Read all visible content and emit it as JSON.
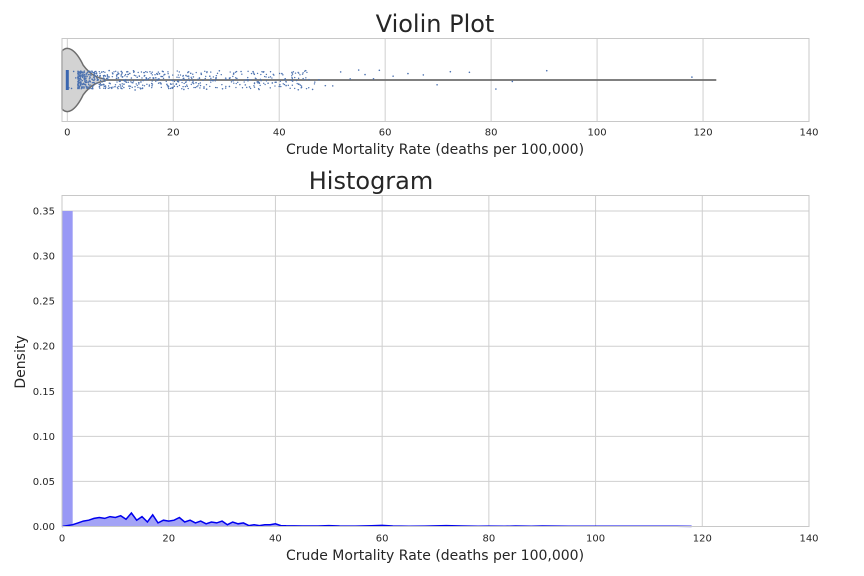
{
  "chart_data": [
    {
      "type": "violin",
      "title": "Violin Plot",
      "xlabel": "Crude Mortality Rate (deaths per 100,000)",
      "ylabel": "",
      "xlim": [
        -1,
        140
      ],
      "xticks": [
        0,
        20,
        40,
        60,
        80,
        100,
        120,
        140
      ],
      "grid": true,
      "whisker_range": [
        0,
        122.5
      ],
      "box": {
        "q1": 0,
        "median": 0,
        "q3": 0
      },
      "jitter_points_x": [
        0.3,
        0.8,
        1.2,
        1.6,
        2.1,
        2.5,
        2.9,
        3.3,
        3.6,
        4.0,
        4.4,
        4.8,
        5.1,
        5.5,
        5.8,
        6.2,
        6.5,
        6.9,
        7.2,
        7.6,
        7.9,
        8.3,
        8.6,
        9.0,
        9.3,
        9.7,
        10.0,
        10.4,
        10.7,
        11.1,
        11.4,
        11.8,
        12.1,
        12.5,
        12.8,
        13.2,
        13.5,
        13.9,
        14.2,
        14.6,
        14.9,
        15.3,
        15.6,
        16.0,
        16.3,
        16.7,
        17.0,
        17.4,
        17.7,
        18.1,
        18.4,
        18.8,
        19.1,
        19.5,
        19.8,
        20.2,
        20.6,
        21.0,
        21.5,
        22.0,
        22.4,
        22.9,
        23.3,
        23.8,
        24.3,
        24.8,
        25.3,
        25.8,
        26.3,
        26.9,
        27.5,
        28.1,
        28.7,
        29.3,
        29.9,
        30.6,
        31.3,
        32.0,
        32.8,
        33.6,
        34.4,
        35.3,
        36.2,
        37.0,
        37.9,
        38.7,
        39.4,
        40.0,
        40.5,
        41.3,
        42.4,
        43.6,
        45.0,
        46.3,
        47.5,
        48.7,
        50.1,
        51.6,
        53.4,
        55.0,
        56.2,
        57.8,
        58.9,
        61.5,
        64.3,
        67.2,
        69.8,
        72.3,
        75.9,
        80.9,
        84.0,
        90.5,
        117.9
      ],
      "y_range": [
        -0.5,
        0.5
      ]
    },
    {
      "type": "histogram",
      "title": "Histogram",
      "xlabel": "Crude Mortality Rate (deaths per 100,000)",
      "ylabel": "Density",
      "xlim": [
        0,
        140
      ],
      "ylim": [
        0,
        0.35
      ],
      "xticks": [
        0,
        20,
        40,
        60,
        80,
        100,
        120,
        140
      ],
      "yticks": [
        0.0,
        0.05,
        0.1,
        0.15,
        0.2,
        0.25,
        0.3,
        0.35
      ],
      "grid": true,
      "bar_color": "#9999f5",
      "kde_color": "#0000ee",
      "bins": [
        {
          "x0": 0,
          "x1": 2,
          "density": 0.35
        }
      ],
      "kde": {
        "x": [
          0,
          1,
          2,
          3,
          4,
          5,
          6,
          7,
          8,
          9,
          10,
          11,
          12,
          13,
          14,
          15,
          16,
          17,
          18,
          19,
          20,
          21,
          22,
          23,
          24,
          25,
          26,
          27,
          28,
          29,
          30,
          31,
          32,
          33,
          34,
          35,
          36,
          37,
          38,
          39,
          40,
          41,
          42,
          45,
          48,
          50,
          52,
          55,
          58,
          60,
          62,
          65,
          68,
          70,
          72,
          75,
          78,
          80,
          83,
          85,
          88,
          90,
          95,
          100,
          105,
          110,
          115,
          118
        ],
        "y": [
          0.0,
          0.001,
          0.002,
          0.004,
          0.006,
          0.007,
          0.009,
          0.01,
          0.009,
          0.011,
          0.01,
          0.012,
          0.008,
          0.015,
          0.007,
          0.011,
          0.005,
          0.013,
          0.004,
          0.007,
          0.006,
          0.007,
          0.01,
          0.005,
          0.007,
          0.004,
          0.006,
          0.003,
          0.005,
          0.004,
          0.006,
          0.002,
          0.005,
          0.003,
          0.004,
          0.001,
          0.002,
          0.001,
          0.002,
          0.002,
          0.003,
          0.001,
          0.0008,
          0.0006,
          0.0005,
          0.001,
          0.0006,
          0.0004,
          0.0008,
          0.0012,
          0.0005,
          0.0003,
          0.0004,
          0.0007,
          0.001,
          0.0006,
          0.0003,
          0.0004,
          0.0002,
          0.0006,
          0.0003,
          0.0005,
          0.0003,
          0.0003,
          0.0002,
          0.0003,
          0.0002,
          0.0001
        ]
      }
    }
  ]
}
